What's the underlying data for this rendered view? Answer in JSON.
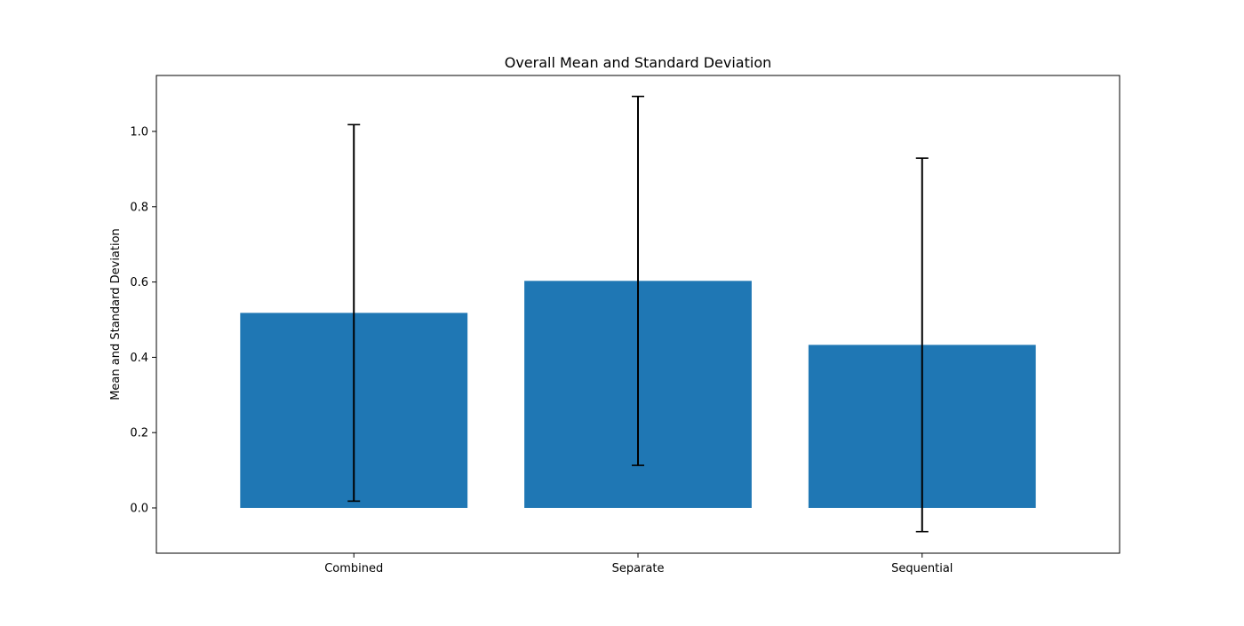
{
  "chart_data": {
    "type": "bar",
    "title": "Overall Mean and Standard Deviation",
    "xlabel": "",
    "ylabel": "Mean and Standard Deviation",
    "categories": [
      "Combined",
      "Separate",
      "Sequential"
    ],
    "values": [
      0.518,
      0.603,
      0.433
    ],
    "error": [
      0.5,
      0.49,
      0.496
    ],
    "ylim": [
      -0.122,
      1.124
    ],
    "yticks": [
      0.0,
      0.2,
      0.4,
      0.6,
      0.8,
      1.0
    ],
    "ytick_labels": [
      "0.0",
      "0.2",
      "0.4",
      "0.6",
      "0.8",
      "1.0"
    ],
    "grid": false,
    "legend": "none",
    "bar_color": "#1f77b4",
    "error_color": "#000000"
  }
}
